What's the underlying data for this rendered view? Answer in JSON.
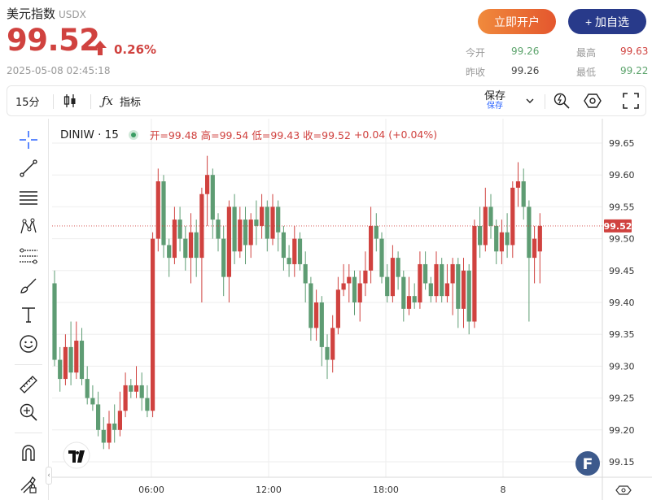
{
  "header": {
    "title": "美元指数",
    "code": "USDX",
    "price": "99.52",
    "change_pct": "0.26%",
    "timestamp": "2025-05-08 02:45:18",
    "btn_open": "立即开户",
    "btn_add": "+ 加自选"
  },
  "quote": {
    "open_label": "今开",
    "open": "99.26",
    "prev_label": "昨收",
    "prev": "99.26",
    "high_label": "最高",
    "high": "99.63",
    "low_label": "最低",
    "low": "99.22"
  },
  "toolbar": {
    "interval": "15分",
    "indicator": "指标",
    "save": "保存",
    "save_sub": "保存"
  },
  "legend": {
    "symbol": "DINIW · 15",
    "open": "开=99.48",
    "high": "高=99.54",
    "low": "低=99.43",
    "close": "收=99.52",
    "chg": "+0.04 (+0.04%)"
  },
  "colors": {
    "up": "#d0423f",
    "down": "#5e9c73",
    "accent": "#283a8a",
    "open_btn": "#e4572e"
  },
  "chart_data": {
    "type": "candlestick",
    "ylim": [
      99.12,
      99.7
    ],
    "yticks": [
      "99.65",
      "99.60",
      "99.55",
      "99.50",
      "99.45",
      "99.40",
      "99.35",
      "99.30",
      "99.25",
      "99.20",
      "99.15"
    ],
    "xticks": [
      "06:00",
      "12:00",
      "18:00",
      "8"
    ],
    "current_price": "99.52",
    "candles": [
      [
        99.43,
        99.31,
        99.45,
        99.3
      ],
      [
        99.31,
        99.28,
        99.33,
        99.26
      ],
      [
        99.28,
        99.33,
        99.35,
        99.27
      ],
      [
        99.33,
        99.29,
        99.37,
        99.27
      ],
      [
        99.29,
        99.34,
        99.37,
        99.28
      ],
      [
        99.34,
        99.28,
        99.36,
        99.27
      ],
      [
        99.28,
        99.25,
        99.3,
        99.24
      ],
      [
        99.25,
        99.24,
        99.27,
        99.23
      ],
      [
        99.24,
        99.2,
        99.26,
        99.19
      ],
      [
        99.2,
        99.18,
        99.22,
        99.17
      ],
      [
        99.18,
        99.21,
        99.23,
        99.17
      ],
      [
        99.21,
        99.2,
        99.24,
        99.18
      ],
      [
        99.2,
        99.23,
        99.26,
        99.19
      ],
      [
        99.23,
        99.27,
        99.29,
        99.22
      ],
      [
        99.27,
        99.26,
        99.28,
        99.25
      ],
      [
        99.26,
        99.27,
        99.3,
        99.25
      ],
      [
        99.27,
        99.25,
        99.29,
        99.23
      ],
      [
        99.25,
        99.23,
        99.27,
        99.22
      ],
      [
        99.23,
        99.5,
        99.51,
        99.22
      ],
      [
        99.5,
        99.59,
        99.61,
        99.48
      ],
      [
        99.59,
        99.49,
        99.6,
        99.47
      ],
      [
        99.49,
        99.47,
        99.5,
        99.44
      ],
      [
        99.47,
        99.53,
        99.55,
        99.46
      ],
      [
        99.53,
        99.5,
        99.55,
        99.48
      ],
      [
        99.5,
        99.47,
        99.52,
        99.45
      ],
      [
        99.47,
        99.51,
        99.54,
        99.43
      ],
      [
        99.51,
        99.47,
        99.53,
        99.44
      ],
      [
        99.47,
        99.57,
        99.58,
        99.4
      ],
      [
        99.57,
        99.6,
        99.63,
        99.52
      ],
      [
        99.6,
        99.53,
        99.61,
        99.5
      ],
      [
        99.53,
        99.5,
        99.54,
        99.48
      ],
      [
        99.5,
        99.44,
        99.52,
        99.41
      ],
      [
        99.44,
        99.55,
        99.56,
        99.4
      ],
      [
        99.55,
        99.48,
        99.57,
        99.46
      ],
      [
        99.48,
        99.53,
        99.55,
        99.47
      ],
      [
        99.53,
        99.49,
        99.55,
        99.46
      ],
      [
        99.49,
        99.53,
        99.54,
        99.47
      ],
      [
        99.53,
        99.52,
        99.56,
        99.49
      ],
      [
        99.52,
        99.55,
        99.57,
        99.5
      ],
      [
        99.55,
        99.5,
        99.56,
        99.48
      ],
      [
        99.5,
        99.55,
        99.57,
        99.49
      ],
      [
        99.55,
        99.51,
        99.56,
        99.48
      ],
      [
        99.51,
        99.47,
        99.52,
        99.45
      ],
      [
        99.47,
        99.46,
        99.49,
        99.44
      ],
      [
        99.46,
        99.5,
        99.52,
        99.44
      ],
      [
        99.5,
        99.46,
        99.51,
        99.45
      ],
      [
        99.46,
        99.43,
        99.48,
        99.4
      ],
      [
        99.43,
        99.36,
        99.44,
        99.34
      ],
      [
        99.36,
        99.4,
        99.42,
        99.34
      ],
      [
        99.4,
        99.33,
        99.41,
        99.3
      ],
      [
        99.33,
        99.31,
        99.35,
        99.28
      ],
      [
        99.31,
        99.36,
        99.38,
        99.29
      ],
      [
        99.36,
        99.42,
        99.44,
        99.35
      ],
      [
        99.42,
        99.43,
        99.46,
        99.41
      ],
      [
        99.43,
        99.44,
        99.46,
        99.4
      ],
      [
        99.44,
        99.4,
        99.45,
        99.38
      ],
      [
        99.4,
        99.43,
        99.45,
        99.37
      ],
      [
        99.43,
        99.45,
        99.48,
        99.41
      ],
      [
        99.45,
        99.52,
        99.55,
        99.43
      ],
      [
        99.52,
        99.5,
        99.54,
        99.48
      ],
      [
        99.5,
        99.44,
        99.51,
        99.43
      ],
      [
        99.44,
        99.41,
        99.46,
        99.4
      ],
      [
        99.41,
        99.47,
        99.49,
        99.4
      ],
      [
        99.47,
        99.44,
        99.48,
        99.42
      ],
      [
        99.44,
        99.39,
        99.45,
        99.37
      ],
      [
        99.39,
        99.41,
        99.44,
        99.38
      ],
      [
        99.41,
        99.4,
        99.43,
        99.39
      ],
      [
        99.4,
        99.46,
        99.48,
        99.39
      ],
      [
        99.46,
        99.43,
        99.48,
        99.42
      ],
      [
        99.43,
        99.41,
        99.44,
        99.4
      ],
      [
        99.41,
        99.46,
        99.48,
        99.4
      ],
      [
        99.46,
        99.41,
        99.47,
        99.4
      ],
      [
        99.41,
        99.43,
        99.46,
        99.4
      ],
      [
        99.43,
        99.46,
        99.47,
        99.38
      ],
      [
        99.46,
        99.39,
        99.47,
        99.36
      ],
      [
        99.39,
        99.45,
        99.47,
        99.36
      ],
      [
        99.45,
        99.37,
        99.46,
        99.35
      ],
      [
        99.37,
        99.52,
        99.53,
        99.36
      ],
      [
        99.52,
        99.49,
        99.55,
        99.47
      ],
      [
        99.49,
        99.55,
        99.58,
        99.48
      ],
      [
        99.55,
        99.52,
        99.57,
        99.5
      ],
      [
        99.52,
        99.48,
        99.53,
        99.46
      ],
      [
        99.48,
        99.51,
        99.53,
        99.46
      ],
      [
        99.51,
        99.49,
        99.54,
        99.47
      ],
      [
        99.49,
        99.58,
        99.59,
        99.47
      ],
      [
        99.58,
        99.59,
        99.62,
        99.55
      ],
      [
        99.59,
        99.55,
        99.61,
        99.53
      ],
      [
        99.55,
        99.47,
        99.56,
        99.37
      ],
      [
        99.47,
        99.5,
        99.52,
        99.43
      ],
      [
        99.48,
        99.52,
        99.54,
        99.43
      ]
    ]
  }
}
